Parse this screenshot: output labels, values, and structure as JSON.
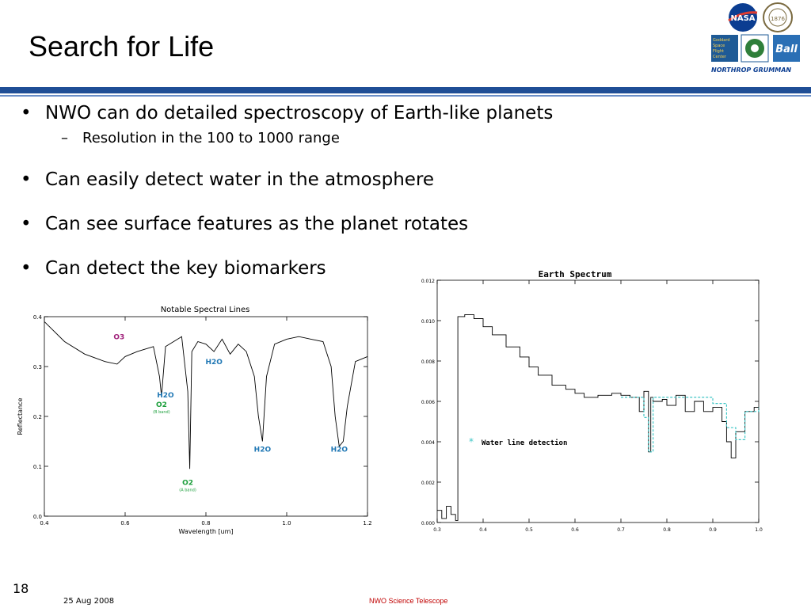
{
  "slide": {
    "title": "Search for Life",
    "bullets": [
      {
        "text": "NWO can do detailed spectroscopy of Earth-like planets",
        "sub": [
          "Resolution in the 100 to 1000 range"
        ]
      },
      {
        "text": "Can easily detect water in the atmosphere",
        "sub": []
      },
      {
        "text": "Can see surface features as the planet rotates",
        "sub": []
      },
      {
        "text": "Can detect the key biomarkers",
        "sub": []
      }
    ],
    "page_number": "18",
    "date": "25 Aug 2008",
    "footer_center": "NWO Science Telescope"
  },
  "logos": {
    "nasa": "NASA",
    "goddard": [
      "Goddard",
      "Space",
      "Flight",
      "Center"
    ],
    "ball": "Ball",
    "northrop": "NORTHROP GRUMMAN",
    "seal_text": "UNIVERSITY OF COLORADO",
    "seal_year": "1876"
  },
  "colors": {
    "rule": "#1f4e96",
    "nasa_blue": "#0b3d91",
    "footer_red": "#c00000",
    "h2o": "#1f77b4",
    "o2": "#1a9e3a",
    "o3": "#a0207a",
    "fit": "#3fc6c6"
  },
  "chart_data": [
    {
      "type": "line",
      "title": "Notable Spectral Lines",
      "xlabel": "Wavelength [um]",
      "ylabel": "Reflectance",
      "xlim": [
        0.4,
        1.2
      ],
      "ylim": [
        0.0,
        0.4
      ],
      "xticks": [
        "0.4",
        "0.6",
        "0.8",
        "1.0",
        "1.2"
      ],
      "yticks": [
        "0.0",
        "0.1",
        "0.2",
        "0.3",
        "0.4"
      ],
      "series": [
        {
          "x": [
            0.4,
            0.45,
            0.5,
            0.55,
            0.58,
            0.6,
            0.63,
            0.65,
            0.67,
            0.685,
            0.69,
            0.7,
            0.72,
            0.74,
            0.755,
            0.76,
            0.765,
            0.78,
            0.8,
            0.82,
            0.84,
            0.86,
            0.88,
            0.9,
            0.92,
            0.93,
            0.94,
            0.95,
            0.97,
            1.0,
            1.03,
            1.06,
            1.09,
            1.11,
            1.12,
            1.13,
            1.14,
            1.15,
            1.17,
            1.2
          ],
          "y": [
            0.39,
            0.35,
            0.325,
            0.31,
            0.305,
            0.32,
            0.33,
            0.335,
            0.34,
            0.28,
            0.24,
            0.34,
            0.35,
            0.36,
            0.25,
            0.095,
            0.33,
            0.35,
            0.345,
            0.33,
            0.355,
            0.325,
            0.345,
            0.33,
            0.28,
            0.2,
            0.15,
            0.28,
            0.345,
            0.355,
            0.36,
            0.355,
            0.35,
            0.3,
            0.2,
            0.14,
            0.15,
            0.22,
            0.31,
            0.32
          ]
        }
      ],
      "annotations": [
        {
          "text": "O3",
          "x": 0.585,
          "y": 0.355,
          "color": "o3"
        },
        {
          "text": "H2O",
          "x": 0.7,
          "y": 0.238,
          "color": "h2o"
        },
        {
          "text": "O2",
          "x": 0.69,
          "y": 0.219,
          "color": "o2",
          "note": "(B band)"
        },
        {
          "text": "H2O",
          "x": 0.82,
          "y": 0.305,
          "color": "h2o"
        },
        {
          "text": "O2",
          "x": 0.755,
          "y": 0.063,
          "color": "o2",
          "note": "(A band)"
        },
        {
          "text": "H2O",
          "x": 0.94,
          "y": 0.129,
          "color": "h2o"
        },
        {
          "text": "H2O",
          "x": 1.13,
          "y": 0.129,
          "color": "h2o"
        }
      ]
    },
    {
      "type": "line",
      "title": "Earth Spectrum",
      "xlabel": "",
      "ylabel": "",
      "xlim": [
        0.3,
        1.0
      ],
      "ylim": [
        0.0,
        0.012
      ],
      "xticks": [
        "0.3",
        "0.4",
        "0.5",
        "0.6",
        "0.7",
        "0.8",
        "0.9",
        "1.0"
      ],
      "yticks": [
        "0.000",
        "0.002",
        "0.004",
        "0.006",
        "0.008",
        "0.010",
        "0.012"
      ],
      "series": [
        {
          "x": [
            0.3,
            0.31,
            0.32,
            0.33,
            0.34,
            0.345,
            0.36,
            0.38,
            0.4,
            0.42,
            0.45,
            0.48,
            0.5,
            0.52,
            0.55,
            0.58,
            0.6,
            0.62,
            0.65,
            0.68,
            0.7,
            0.72,
            0.74,
            0.75,
            0.76,
            0.765,
            0.77,
            0.79,
            0.8,
            0.82,
            0.84,
            0.86,
            0.88,
            0.9,
            0.92,
            0.93,
            0.94,
            0.95,
            0.97,
            0.99,
            1.0
          ],
          "y": [
            0.0006,
            0.0002,
            0.0008,
            0.0004,
            0.0001,
            0.0102,
            0.0103,
            0.0101,
            0.0097,
            0.0093,
            0.0087,
            0.0082,
            0.0077,
            0.0073,
            0.0068,
            0.0066,
            0.0064,
            0.0062,
            0.0063,
            0.0064,
            0.0063,
            0.0062,
            0.0055,
            0.0065,
            0.0035,
            0.0062,
            0.006,
            0.0061,
            0.0058,
            0.0063,
            0.0055,
            0.006,
            0.0055,
            0.0057,
            0.005,
            0.004,
            0.0032,
            0.0045,
            0.0055,
            0.0057,
            0.0055
          ]
        },
        {
          "x": [
            0.7,
            0.74,
            0.75,
            0.76,
            0.77,
            0.8,
            0.85,
            0.88,
            0.9,
            0.93,
            0.95,
            0.97,
            1.0
          ],
          "y": [
            0.0062,
            0.0062,
            0.0052,
            0.0035,
            0.0062,
            0.0062,
            0.0062,
            0.0062,
            0.0059,
            0.0047,
            0.0041,
            0.0055,
            0.0057
          ]
        }
      ],
      "legend": [
        {
          "text": "Water line detection",
          "symbol": "*"
        }
      ]
    }
  ]
}
